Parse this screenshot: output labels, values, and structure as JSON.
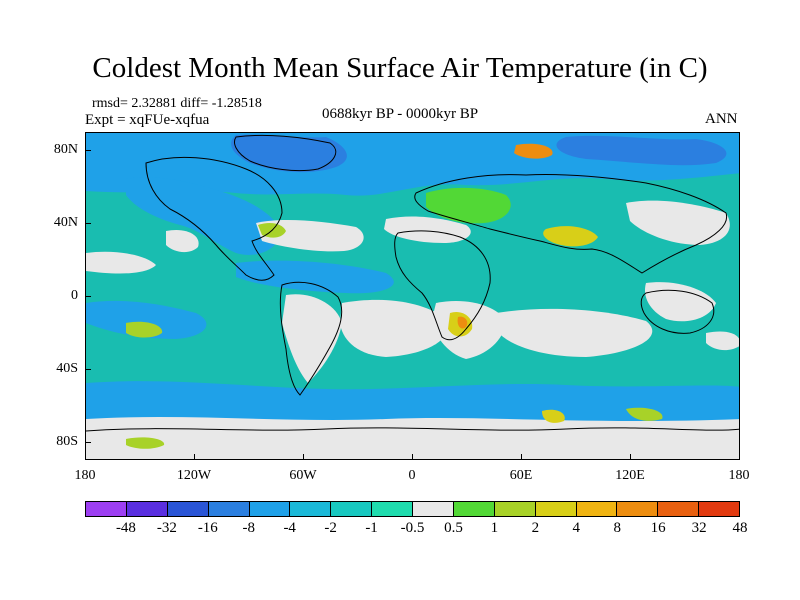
{
  "title": "Coldest Month Mean Surface Air Temperature (in C)",
  "stats": "rmsd= 2.32881 diff= -1.28518",
  "expt": "Expt = xqFUe-xqfua",
  "period": "0688kyr BP - 0000kyr BP",
  "season": "ANN",
  "lat_labels": [
    "80N",
    "40N",
    "0",
    "40S",
    "80S"
  ],
  "lon_labels": [
    "180",
    "120W",
    "60W",
    "0",
    "60E",
    "120E",
    "180"
  ],
  "legend": {
    "colors": [
      "#9d3ff2",
      "#5a2fe0",
      "#2a55d6",
      "#2b7fe0",
      "#1fa1e8",
      "#1bb9d8",
      "#18c8c0",
      "#1fdcae",
      "#e8e8e8",
      "#52d836",
      "#a8d228",
      "#d8cf18",
      "#f0b412",
      "#ed8d10",
      "#e86010",
      "#e23a10"
    ],
    "labels": [
      "-48",
      "-32",
      "-16",
      "-8",
      "-4",
      "-2",
      "-1",
      "-0.5",
      "0.5",
      "1",
      "2",
      "4",
      "8",
      "16",
      "32",
      "48"
    ]
  },
  "colors": {
    "ocean_base": "#19bdb0",
    "near_zero": "#e8e8e8",
    "cool": "#1fa1e8",
    "cold": "#2b7fe0",
    "warm": "#a8d228",
    "warmer": "#d8cf18",
    "hot": "#ed8d10"
  }
}
